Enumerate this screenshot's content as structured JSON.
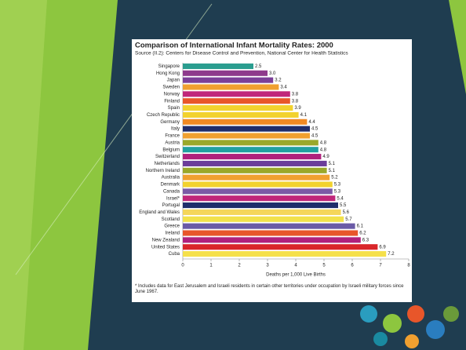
{
  "chart_data": {
    "type": "bar",
    "orientation": "horizontal",
    "title": "Comparison of International Infant Mortality Rates: 2000",
    "subtitle": "Source (II.2): Centers for Disease Control and Prevention, National Center for Health Statistics",
    "categories": [
      "Singapore",
      "Hong Kong",
      "Japan",
      "Sweden",
      "Norway",
      "Finland",
      "Spain",
      "Czech Republic",
      "Germany",
      "Italy",
      "France",
      "Austria",
      "Belgium",
      "Switzerland",
      "Netherlands",
      "Northern Ireland",
      "Australia",
      "Denmark",
      "Canada",
      "Israel*",
      "Portugal",
      "England and Wales",
      "Scotland",
      "Greece",
      "Ireland",
      "New Zealand",
      "United States",
      "Cuba"
    ],
    "values": [
      2.5,
      3.0,
      3.2,
      3.4,
      3.8,
      3.8,
      3.9,
      4.1,
      4.4,
      4.5,
      4.5,
      4.8,
      4.8,
      4.9,
      5.1,
      5.1,
      5.2,
      5.3,
      5.3,
      5.4,
      5.5,
      5.6,
      5.7,
      6.1,
      6.2,
      6.3,
      6.9,
      7.2
    ],
    "value_labels": [
      "2.5",
      "3.0",
      "3.2",
      "3.4",
      "3.8",
      "3.8",
      "3.9",
      "4.1",
      "4.4",
      "4.5",
      "4.5",
      "4.8",
      "4.8",
      "4.9",
      "5.1",
      "5.1",
      "5.2",
      "5.3",
      "5.3",
      "5.4",
      "5.5",
      "5.6",
      "5.7",
      "6.1",
      "6.2",
      "6.3",
      "6.9",
      "7.2"
    ],
    "colors": [
      "#2a9d8f",
      "#8e3a8c",
      "#7b3f98",
      "#f0a030",
      "#c0267a",
      "#e8562a",
      "#f2d22e",
      "#f2d22e",
      "#f08a24",
      "#1f2d6b",
      "#f0a030",
      "#9aa82a",
      "#22a0a0",
      "#b0217c",
      "#6a3d9a",
      "#9aa82a",
      "#f0a030",
      "#f2d22e",
      "#7b5aa6",
      "#c0267a",
      "#1f2d6b",
      "#f5d65a",
      "#f2e14a",
      "#6a5aa6",
      "#e8562a",
      "#b0217c",
      "#d9262a",
      "#f5e04a"
    ],
    "xlim": [
      0,
      8
    ],
    "xticks": [
      0,
      1,
      2,
      3,
      4,
      5,
      6,
      7,
      8
    ],
    "xlabel": "Deaths per 1,000 Live Births",
    "footnote": "* Includes data for East Jerusalem and Israeli residents in certain other territories under occupation by Israeli military forces since June 1967."
  }
}
